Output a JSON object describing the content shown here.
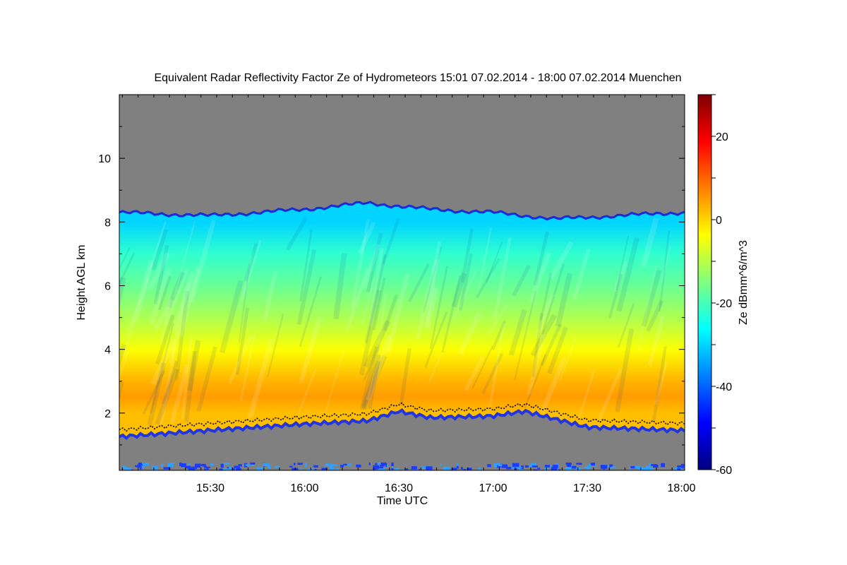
{
  "chart_data": {
    "type": "heatmap",
    "title": "Equivalent Radar Reflectivity Factor Ze of Hydrometeors   15:01 07.02.2014 - 18:00 07.02.2014 Muenchen",
    "xlabel": "Time UTC",
    "ylabel": "Height AGL km",
    "colorbar_label": "Ze dBmm^6/m^3",
    "x_range": [
      "15:01",
      "18:01"
    ],
    "x_ticks": [
      "15:30",
      "16:00",
      "16:30",
      "17:00",
      "17:30",
      "18:00"
    ],
    "y_range": [
      0.2,
      12
    ],
    "y_ticks": [
      "2",
      "4",
      "6",
      "8",
      "10"
    ],
    "color_range": [
      -60,
      30
    ],
    "colorbar_ticks": [
      "-60",
      "-40",
      "-20",
      "0",
      "20"
    ],
    "colormap": "jet",
    "no_data_color": "#808080",
    "cloud_top_km": [
      {
        "time": "15:01",
        "height": 8.3
      },
      {
        "time": "15:30",
        "height": 8.2
      },
      {
        "time": "16:00",
        "height": 8.4
      },
      {
        "time": "16:20",
        "height": 8.6
      },
      {
        "time": "16:40",
        "height": 8.4
      },
      {
        "time": "17:00",
        "height": 8.3
      },
      {
        "time": "17:20",
        "height": 8.1
      },
      {
        "time": "17:40",
        "height": 8.2
      },
      {
        "time": "18:00",
        "height": 8.3
      }
    ],
    "cloud_base_km": [
      {
        "time": "15:01",
        "height": 1.3
      },
      {
        "time": "15:30",
        "height": 1.5
      },
      {
        "time": "16:00",
        "height": 1.7
      },
      {
        "time": "16:20",
        "height": 1.8
      },
      {
        "time": "16:30",
        "height": 2.1
      },
      {
        "time": "16:40",
        "height": 1.9
      },
      {
        "time": "17:00",
        "height": 1.95
      },
      {
        "time": "17:10",
        "height": 2.1
      },
      {
        "time": "17:30",
        "height": 1.6
      },
      {
        "time": "18:00",
        "height": 1.5
      }
    ],
    "reflectivity_profile_dBZ": [
      {
        "height": 8.0,
        "value": -30
      },
      {
        "height": 7.0,
        "value": -22
      },
      {
        "height": 6.0,
        "value": -17
      },
      {
        "height": 5.0,
        "value": -11
      },
      {
        "height": 4.0,
        "value": -4
      },
      {
        "height": 3.0,
        "value": 3
      },
      {
        "height": 2.5,
        "value": 5
      },
      {
        "height": 2.0,
        "value": 2
      }
    ]
  }
}
